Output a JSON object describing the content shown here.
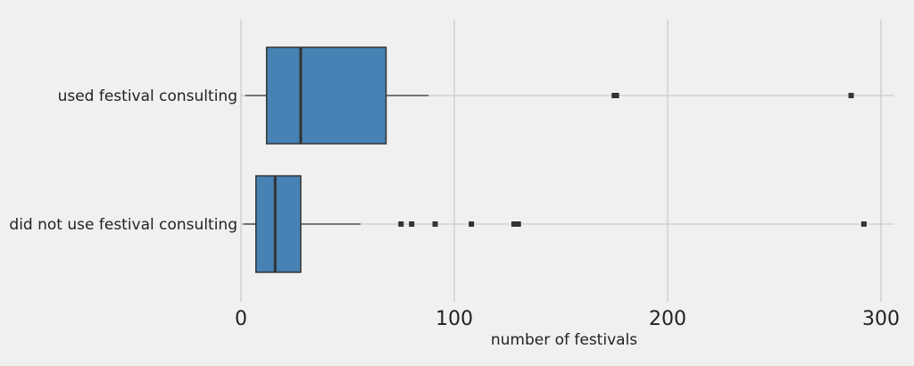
{
  "chart_data": {
    "type": "box",
    "orientation": "horizontal",
    "xlabel": "number of festivals",
    "ylabel": "",
    "title": "",
    "xlim": [
      0,
      306
    ],
    "xticks": [
      0,
      100,
      200,
      300
    ],
    "grid": true,
    "colors": {
      "box": "#4682b4",
      "edge": "#333333",
      "grid": "#cbcbcb",
      "background": "#f0f0f0"
    },
    "series": [
      {
        "category": "used festival consulting",
        "whisker_low": 2,
        "q1": 12,
        "median": 28,
        "q3": 68,
        "whisker_high": 88,
        "outliers": [
          175,
          176,
          286
        ]
      },
      {
        "category": "did not use festival consulting",
        "whisker_low": 1,
        "q1": 7,
        "median": 16,
        "q3": 28,
        "whisker_high": 56,
        "outliers": [
          75,
          80,
          91,
          108,
          128,
          130,
          292
        ]
      }
    ]
  }
}
